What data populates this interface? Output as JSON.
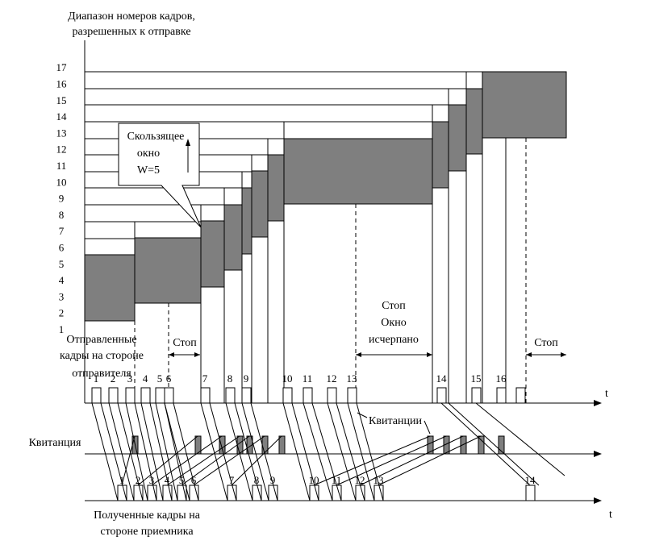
{
  "title": {
    "line1": "Диапазон номеров кадров,",
    "line2": "разрешенных к отправке"
  },
  "y_ticks": [
    "1",
    "2",
    "3",
    "4",
    "5",
    "6",
    "7",
    "8",
    "9",
    "10",
    "11",
    "12",
    "13",
    "14",
    "15",
    "16",
    "17"
  ],
  "callout": {
    "line1": "Скользящее",
    "line2": "окно",
    "line3": "W=5"
  },
  "sender_label": {
    "line1": "Отправленные",
    "line2": "кадры на стороне",
    "line3": "отправителя"
  },
  "receiver_label": {
    "line1": "Полученные кадры на",
    "line2": "стороне приемника"
  },
  "ack_label": "Квитанция",
  "acks_label": "Квитанции",
  "stop_labels": {
    "first": "Стоп",
    "middle_line1": "Стоп",
    "middle_line2": "Окно",
    "middle_line3": "исчерпано",
    "last": "Стоп"
  },
  "time_symbol": "t",
  "sent_frames": [
    "1",
    "2",
    "3",
    "4",
    "5",
    "6",
    "7",
    "8",
    "9",
    "10",
    "11",
    "12",
    "13",
    "14",
    "15",
    "16"
  ],
  "received_frames": [
    "1",
    "2",
    "3",
    "4",
    "5",
    "6",
    "7",
    "8",
    "9",
    "10",
    "11",
    "12",
    "13",
    "14"
  ],
  "colors": {
    "window_fill": "#7f7f7f",
    "line": "#000000",
    "background": "#ffffff"
  }
}
